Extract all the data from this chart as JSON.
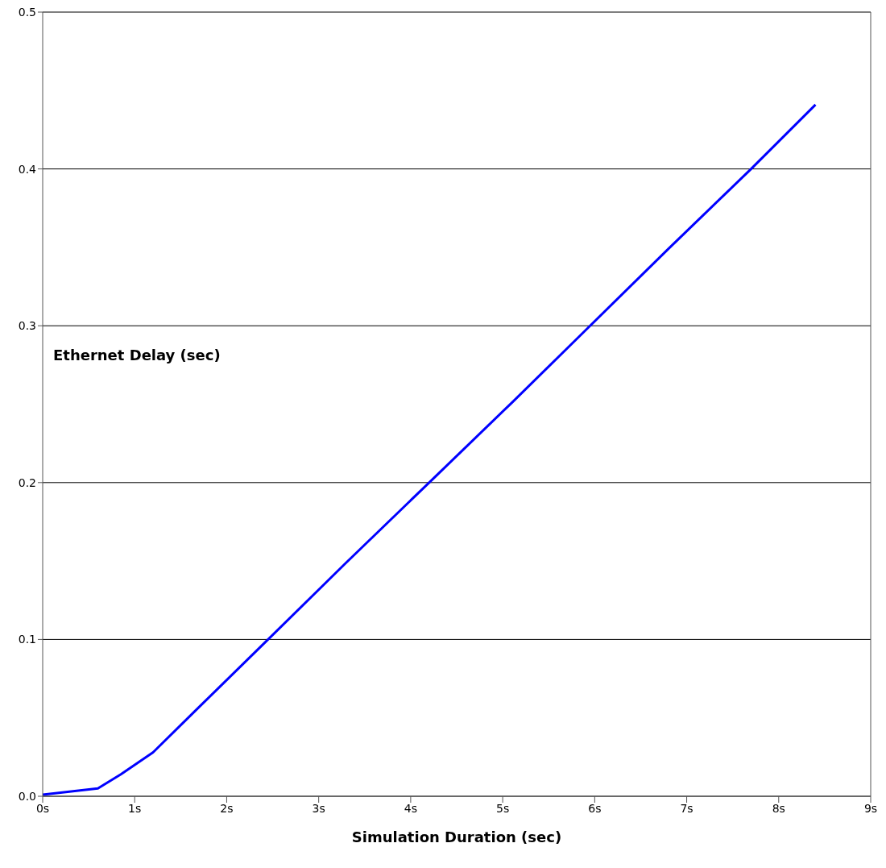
{
  "chart_data": {
    "type": "line",
    "xlabel": "Simulation Duration (sec)",
    "ylabel": "Ethernet Delay (sec)",
    "x": [
      0,
      0.6,
      0.85,
      1.2,
      1.65,
      2.45,
      3.3,
      4.2,
      5.1,
      5.95,
      6.8,
      7.7,
      8.4
    ],
    "series": [
      {
        "color": "#0000ff",
        "values": [
          0.001,
          0.005,
          0.014,
          0.028,
          0.054,
          0.1,
          0.149,
          0.2,
          0.251,
          0.3,
          0.349,
          0.4,
          0.441
        ]
      }
    ],
    "xlim": [
      0,
      9
    ],
    "xticks": [
      {
        "value": 0,
        "label": "0s"
      },
      {
        "value": 1,
        "label": "1s"
      },
      {
        "value": 2,
        "label": "2s"
      },
      {
        "value": 3,
        "label": "3s"
      },
      {
        "value": 4,
        "label": "4s"
      },
      {
        "value": 5,
        "label": "5s"
      },
      {
        "value": 6,
        "label": "6s"
      },
      {
        "value": 7,
        "label": "7s"
      },
      {
        "value": 8,
        "label": "8s"
      },
      {
        "value": 9,
        "label": "9s"
      }
    ],
    "ylim": [
      0,
      0.5
    ],
    "yticks": [
      {
        "value": 0,
        "label": "0.0"
      },
      0.1,
      0.2,
      0.3,
      0.4,
      0.5
    ],
    "grid": "y",
    "legend": false,
    "marker": "none",
    "line_style": "solid"
  }
}
